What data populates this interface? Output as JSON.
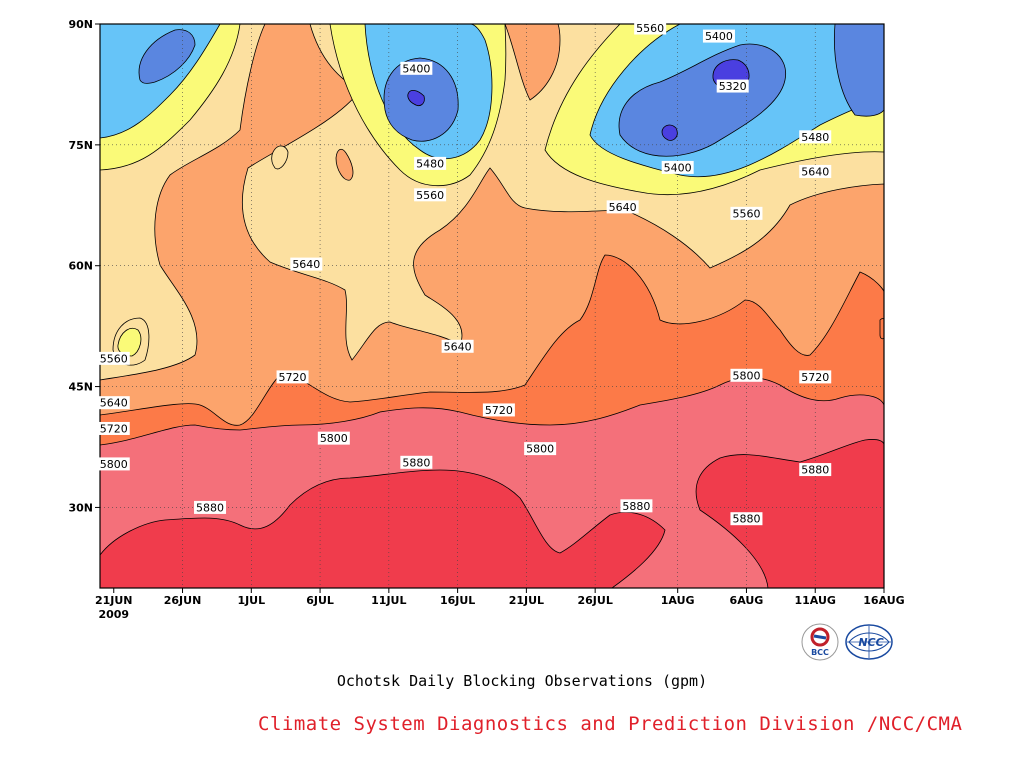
{
  "chart_data": {
    "type": "heatmap",
    "title": "Ochotsk Daily Blocking Observations (gpm)",
    "credit": "Climate System Diagnostics and Prediction Division /NCC/CMA",
    "x_ticks": [
      "21JUN",
      "26JUN",
      "1JUL",
      "6JUL",
      "11JUL",
      "16JUL",
      "21JUL",
      "26JUL",
      "1AUG",
      "6AUG",
      "11AUG",
      "16AUG"
    ],
    "x_year_label": "2009",
    "y_ticks": [
      "90N",
      "75N",
      "60N",
      "45N",
      "30N"
    ],
    "x_range": [
      "2009-06-20",
      "2009-08-16"
    ],
    "y_range": [
      20,
      90
    ],
    "contour_levels": [
      5320,
      5400,
      5480,
      5560,
      5640,
      5720,
      5800,
      5880
    ],
    "contour_labels": [
      {
        "text": "5560",
        "date": "2009-07-30",
        "lat": 89.5
      },
      {
        "text": "5400",
        "date": "2009-08-04",
        "lat": 88.5
      },
      {
        "text": "5400",
        "date": "2009-07-13",
        "lat": 84.5
      },
      {
        "text": "5320",
        "date": "2009-08-05",
        "lat": 82.3
      },
      {
        "text": "5480",
        "date": "2009-08-11",
        "lat": 76.0
      },
      {
        "text": "5400",
        "date": "2009-08-01",
        "lat": 72.2
      },
      {
        "text": "5640",
        "date": "2009-08-11",
        "lat": 71.7
      },
      {
        "text": "5480",
        "date": "2009-07-14",
        "lat": 72.7
      },
      {
        "text": "5560",
        "date": "2009-07-14",
        "lat": 68.8
      },
      {
        "text": "5640",
        "date": "2009-07-28",
        "lat": 67.3
      },
      {
        "text": "5560",
        "date": "2009-08-06",
        "lat": 66.5
      },
      {
        "text": "5640",
        "date": "2009-07-05",
        "lat": 60.2
      },
      {
        "text": "5640",
        "date": "2009-07-16",
        "lat": 50.0
      },
      {
        "text": "5560",
        "date": "2009-06-21",
        "lat": 48.5
      },
      {
        "text": "5720",
        "date": "2009-07-04",
        "lat": 46.2
      },
      {
        "text": "5800",
        "date": "2009-08-06",
        "lat": 46.4
      },
      {
        "text": "5720",
        "date": "2009-08-11",
        "lat": 46.2
      },
      {
        "text": "5640",
        "date": "2009-06-21",
        "lat": 43.0
      },
      {
        "text": "5720",
        "date": "2009-07-19",
        "lat": 42.1
      },
      {
        "text": "5720",
        "date": "2009-06-21",
        "lat": 39.8
      },
      {
        "text": "5800",
        "date": "2009-07-07",
        "lat": 38.6
      },
      {
        "text": "5800",
        "date": "2009-07-22",
        "lat": 37.3
      },
      {
        "text": "5800",
        "date": "2009-06-21",
        "lat": 35.4
      },
      {
        "text": "5880",
        "date": "2009-07-13",
        "lat": 35.6
      },
      {
        "text": "5880",
        "date": "2009-08-11",
        "lat": 34.7
      },
      {
        "text": "5880",
        "date": "2009-06-28",
        "lat": 30.0
      },
      {
        "text": "5880",
        "date": "2009-07-29",
        "lat": 30.2
      },
      {
        "text": "5880",
        "date": "2009-08-06",
        "lat": 28.6
      }
    ],
    "colors": {
      "below_5320": "#4a3fe0",
      "5320_5400": "#5a86e0",
      "5400_5480": "#66c4f8",
      "5480_5560": "#fafa78",
      "5560_5640": "#fce0a0",
      "5640_5720": "#fca46c",
      "5720_5800": "#fc7a48",
      "5800_5880": "#f4707a",
      "above_5880": "#f03c4c"
    },
    "grid": "dotted"
  },
  "logos": [
    {
      "name": "BCC",
      "text": "BCC"
    },
    {
      "name": "NCC",
      "text": "NCC"
    }
  ]
}
